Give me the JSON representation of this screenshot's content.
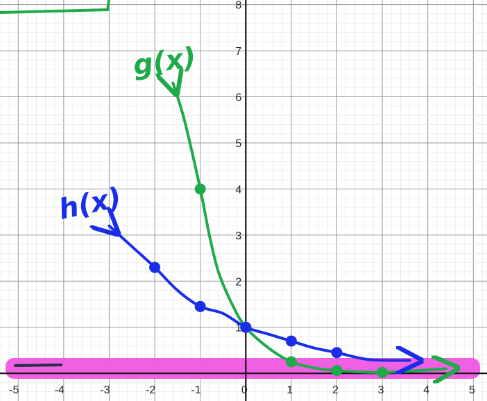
{
  "chart_data": {
    "type": "line",
    "xlim": [
      -5.4,
      5.3
    ],
    "ylim": [
      -0.6,
      8.1
    ],
    "grid": true,
    "x_ticks": [
      "-5",
      "-4",
      "-3",
      "-2",
      "-1",
      "0",
      "1",
      "2",
      "3",
      "4",
      "5"
    ],
    "y_ticks": [
      "1",
      "2",
      "3",
      "4",
      "5",
      "6",
      "7",
      "8"
    ],
    "series": [
      {
        "name": "g(x)",
        "color": "#1faa4a",
        "points": [
          [
            -1,
            4
          ],
          [
            0,
            1
          ],
          [
            1,
            0.25
          ],
          [
            2,
            0.06
          ],
          [
            3,
            0.02
          ]
        ],
        "curve": [
          [
            -1.6,
            6.3
          ],
          [
            -1.35,
            5.5
          ],
          [
            -1.0,
            4.0
          ],
          [
            -0.8,
            3.0
          ],
          [
            -0.6,
            2.2
          ],
          [
            -0.3,
            1.5
          ],
          [
            0,
            1.0
          ],
          [
            0.5,
            0.55
          ],
          [
            1,
            0.25
          ],
          [
            1.5,
            0.12
          ],
          [
            2,
            0.06
          ],
          [
            3,
            0.02
          ],
          [
            4.4,
            0.1
          ]
        ]
      },
      {
        "name": "h(x)",
        "color": "#1a2ee8",
        "points": [
          [
            -2,
            2.3
          ],
          [
            -1,
            1.45
          ],
          [
            0,
            1.0
          ],
          [
            1,
            0.7
          ],
          [
            2,
            0.45
          ]
        ],
        "curve": [
          [
            -3,
            3.2
          ],
          [
            -2.5,
            2.75
          ],
          [
            -2,
            2.3
          ],
          [
            -1.5,
            1.8
          ],
          [
            -1,
            1.45
          ],
          [
            -0.5,
            1.3
          ],
          [
            0,
            1.0
          ],
          [
            0.5,
            0.85
          ],
          [
            1,
            0.7
          ],
          [
            1.5,
            0.55
          ],
          [
            2,
            0.45
          ],
          [
            2.7,
            0.3
          ],
          [
            3.6,
            0.28
          ]
        ]
      }
    ],
    "highlight_color": "#f056e0"
  }
}
